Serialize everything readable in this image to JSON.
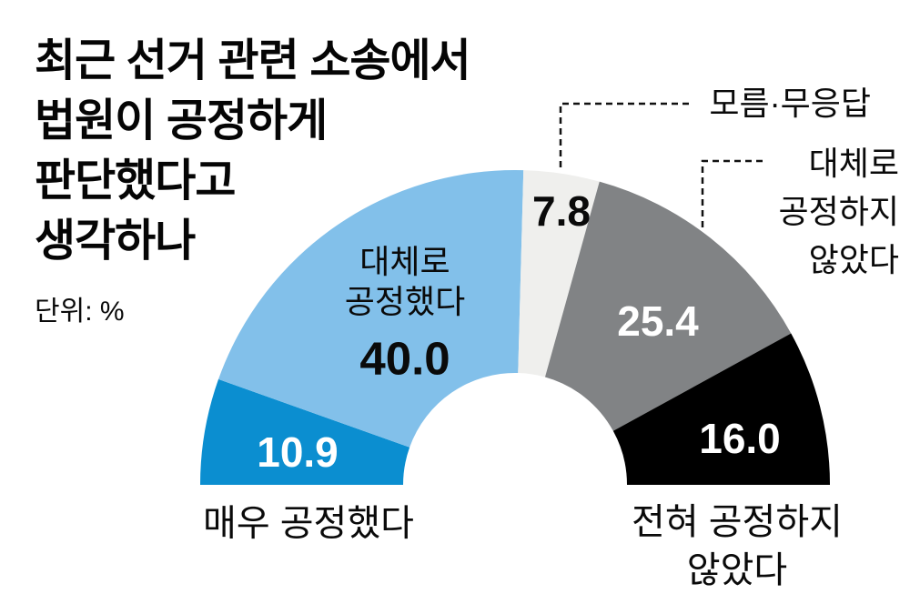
{
  "chart_data": {
    "type": "pie",
    "variant": "half-donut",
    "title": "최근 선거 관련 소송에서 법원이 공정하게 판단했다고 생각하나",
    "title_lines": [
      "최근 선거 관련 소송에서",
      "법원이 공정하게",
      "판단했다고",
      "생각하나"
    ],
    "unit_label": "단위: %",
    "background": "#ffffff",
    "legend_position": "callouts-and-inline",
    "segments": [
      {
        "label": "매우 공정했다",
        "value": 10.9,
        "value_text": "10.9",
        "color": "#0b8ed0",
        "value_color": "#ffffff"
      },
      {
        "label": "대체로 공정했다",
        "label_lines": [
          "대체로",
          "공정했다"
        ],
        "value": 40.0,
        "value_text": "40.0",
        "color": "#82c0ea",
        "value_color": "#000000"
      },
      {
        "label": "모름·무응답",
        "value": 7.8,
        "value_text": "7.8",
        "color": "#efefed",
        "value_color": "#000000"
      },
      {
        "label": "대체로 공정하지 않았다",
        "label_lines": [
          "대체로",
          "공정하지",
          "않았다"
        ],
        "value": 25.4,
        "value_text": "25.4",
        "color": "#818385",
        "value_color": "#ffffff"
      },
      {
        "label": "전혀 공정하지 않았다",
        "label_lines": [
          "전혀 공정하지",
          "않았다"
        ],
        "value": 16.0,
        "value_text": "16.0",
        "color": "#000000",
        "value_color": "#ffffff"
      }
    ]
  }
}
